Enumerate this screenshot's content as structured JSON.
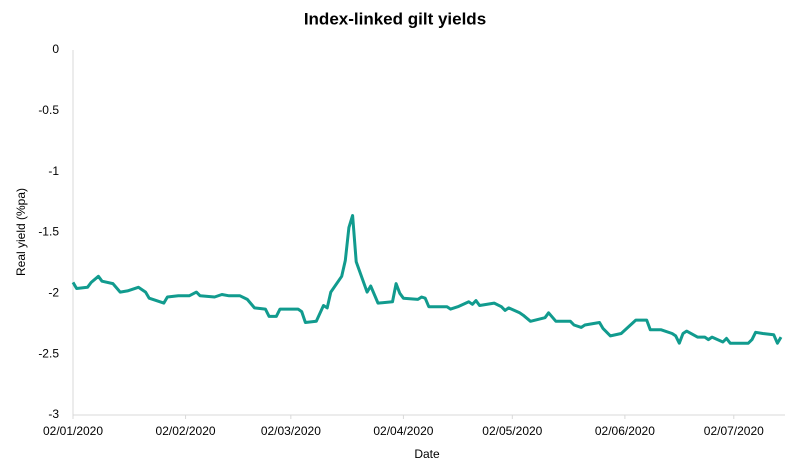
{
  "chart_data": {
    "type": "line",
    "title": "Index-linked gilt yields",
    "x_label": "Date",
    "y_label": "Real yield (%pa)",
    "x": [
      "02/01/2020",
      "03/01/2020",
      "06/01/2020",
      "07/01/2020",
      "09/01/2020",
      "10/01/2020",
      "13/01/2020",
      "15/01/2020",
      "17/01/2020",
      "20/01/2020",
      "22/01/2020",
      "23/01/2020",
      "27/01/2020",
      "28/01/2020",
      "31/01/2020",
      "03/02/2020",
      "05/02/2020",
      "06/02/2020",
      "10/02/2020",
      "12/02/2020",
      "14/02/2020",
      "17/02/2020",
      "19/02/2020",
      "21/02/2020",
      "24/02/2020",
      "25/02/2020",
      "27/02/2020",
      "28/02/2020",
      "02/03/2020",
      "04/03/2020",
      "05/03/2020",
      "06/03/2020",
      "09/03/2020",
      "11/03/2020",
      "12/03/2020",
      "13/03/2020",
      "16/03/2020",
      "17/03/2020",
      "18/03/2020",
      "19/03/2020",
      "20/03/2020",
      "23/03/2020",
      "24/03/2020",
      "26/03/2020",
      "30/03/2020",
      "31/03/2020",
      "01/04/2020",
      "02/04/2020",
      "06/04/2020",
      "07/04/2020",
      "08/04/2020",
      "09/04/2020",
      "14/04/2020",
      "15/04/2020",
      "17/04/2020",
      "20/04/2020",
      "21/04/2020",
      "22/04/2020",
      "23/04/2020",
      "27/04/2020",
      "29/04/2020",
      "30/04/2020",
      "01/05/2020",
      "04/05/2020",
      "05/05/2020",
      "07/05/2020",
      "11/05/2020",
      "12/05/2020",
      "14/05/2020",
      "18/05/2020",
      "19/05/2020",
      "21/05/2020",
      "22/05/2020",
      "26/05/2020",
      "27/05/2020",
      "29/05/2020",
      "01/06/2020",
      "05/06/2020",
      "08/06/2020",
      "09/06/2020",
      "12/06/2020",
      "15/06/2020",
      "16/06/2020",
      "17/06/2020",
      "18/06/2020",
      "19/06/2020",
      "22/06/2020",
      "24/06/2020",
      "25/06/2020",
      "26/06/2020",
      "29/06/2020",
      "30/06/2020",
      "01/07/2020",
      "06/07/2020",
      "07/07/2020",
      "08/07/2020",
      "10/07/2020",
      "13/07/2020",
      "14/07/2020",
      "15/07/2020"
    ],
    "series": [
      {
        "name": "Real yield",
        "color": "#119b8e",
        "values": [
          -1.91,
          -1.96,
          -1.95,
          -1.91,
          -1.86,
          -1.9,
          -1.92,
          -1.99,
          -1.98,
          -1.95,
          -1.99,
          -2.04,
          -2.08,
          -2.03,
          -2.02,
          -2.02,
          -1.99,
          -2.02,
          -2.03,
          -2.01,
          -2.02,
          -2.02,
          -2.05,
          -2.12,
          -2.13,
          -2.19,
          -2.19,
          -2.13,
          -2.13,
          -2.13,
          -2.15,
          -2.24,
          -2.23,
          -2.1,
          -2.12,
          -1.99,
          -1.86,
          -1.73,
          -1.46,
          -1.36,
          -1.74,
          -1.99,
          -1.94,
          -2.08,
          -2.07,
          -1.92,
          -2.0,
          -2.04,
          -2.05,
          -2.03,
          -2.04,
          -2.11,
          -2.11,
          -2.13,
          -2.11,
          -2.07,
          -2.09,
          -2.06,
          -2.1,
          -2.08,
          -2.11,
          -2.14,
          -2.12,
          -2.16,
          -2.18,
          -2.23,
          -2.2,
          -2.16,
          -2.23,
          -2.23,
          -2.26,
          -2.28,
          -2.26,
          -2.24,
          -2.29,
          -2.35,
          -2.33,
          -2.22,
          -2.22,
          -2.3,
          -2.3,
          -2.33,
          -2.35,
          -2.41,
          -2.33,
          -2.31,
          -2.36,
          -2.36,
          -2.38,
          -2.36,
          -2.4,
          -2.37,
          -2.41,
          -2.41,
          -2.38,
          -2.32,
          -2.33,
          -2.34,
          -2.41,
          -2.36
        ]
      }
    ],
    "xlim": [
      "02/01/2020",
      "15/07/2020"
    ],
    "xticks": [
      "02/01/2020",
      "02/02/2020",
      "02/03/2020",
      "02/04/2020",
      "02/05/2020",
      "02/06/2020",
      "02/07/2020"
    ],
    "ylim": [
      -3,
      0
    ],
    "yticks": [
      -3,
      -2.5,
      -2,
      -1.5,
      -1,
      -0.5,
      0
    ],
    "grid": false
  }
}
